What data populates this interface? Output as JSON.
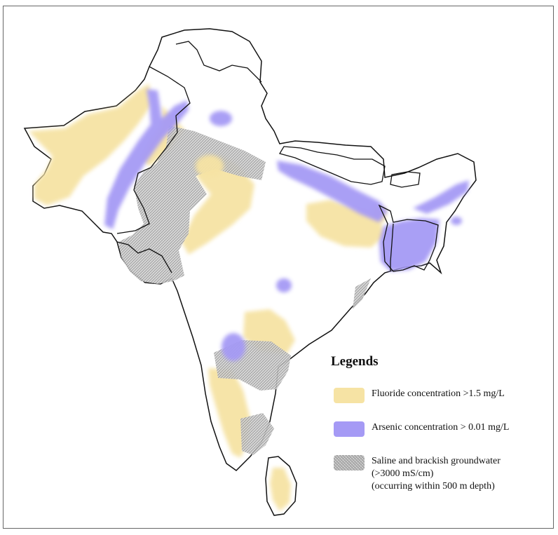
{
  "legend": {
    "title": "Legends",
    "items": [
      {
        "key": "fluoride",
        "lines": [
          "Fluoride concentration >1.5 mg/L"
        ],
        "color": "#f6e3a4"
      },
      {
        "key": "arsenic",
        "lines": [
          "Arsenic concentration > 0.01 mg/L"
        ],
        "color": "#a59af5"
      },
      {
        "key": "saline",
        "lines": [
          "Saline and brackish groundwater",
          "(>3000 mS/cm)",
          "(occurring within 500 m depth)"
        ],
        "color": "#a8a8a8"
      }
    ]
  },
  "colors": {
    "fluoride": "#f6e3a4",
    "arsenic": "#a59af5",
    "saline": "#a8a8a8",
    "border": "#111111"
  }
}
